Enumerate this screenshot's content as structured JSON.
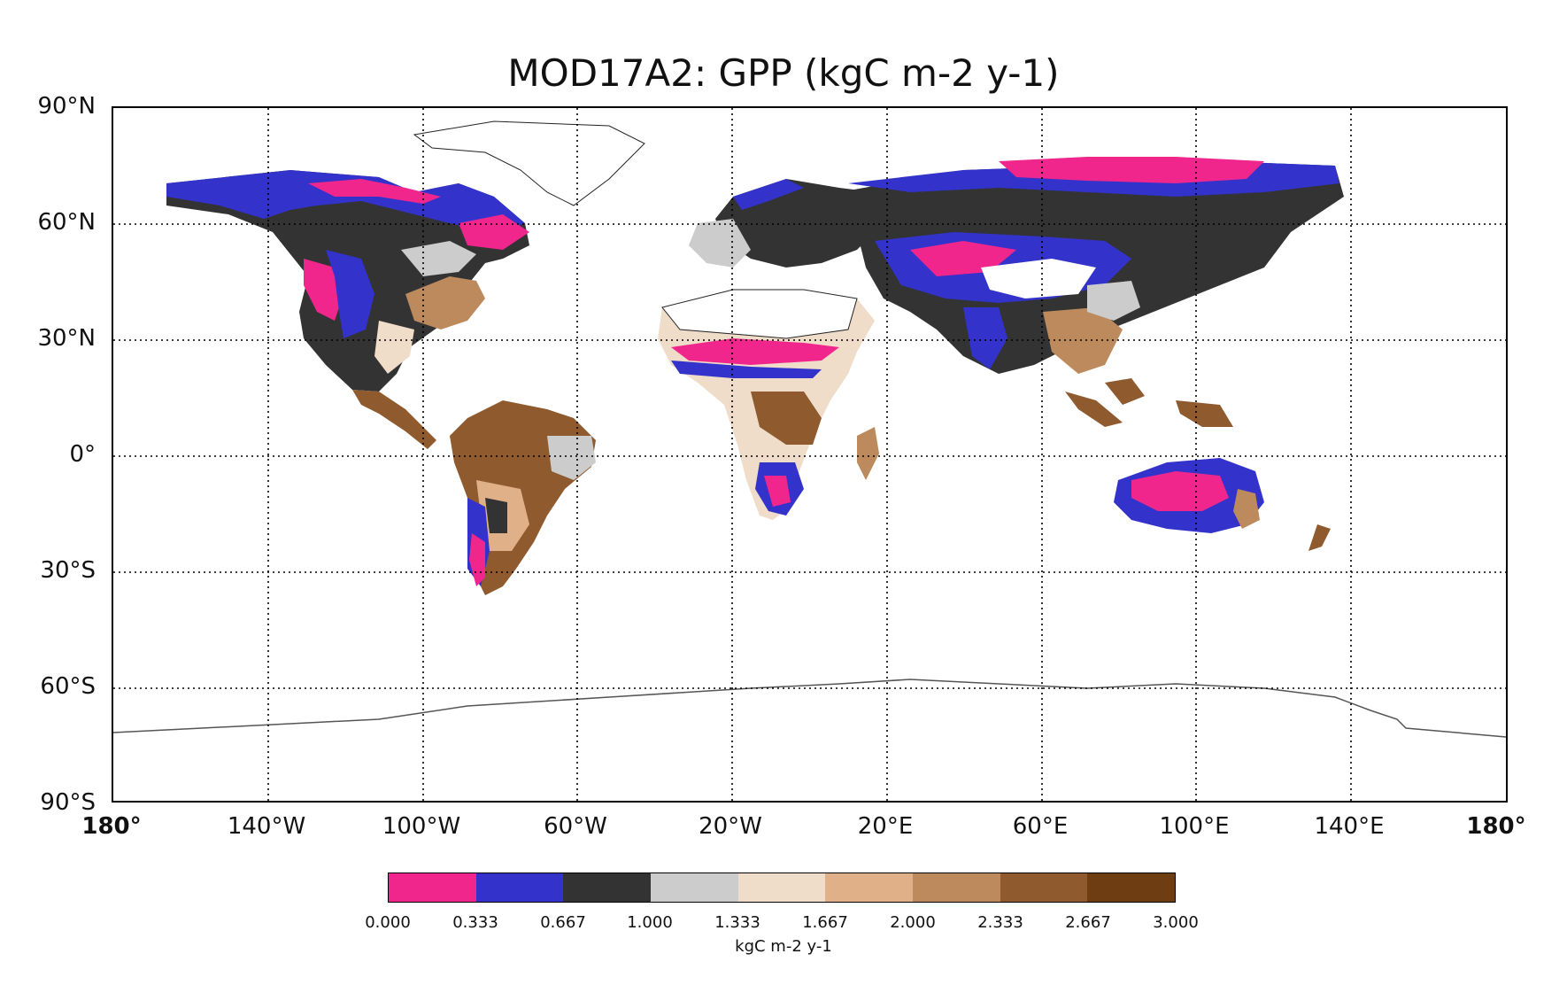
{
  "title": "MOD17A2: GPP (kgC m-2 y-1)",
  "lat_labels": [
    "90°N",
    "60°N",
    "30°N",
    "0°",
    "30°S",
    "60°S",
    "90°S"
  ],
  "lon_labels": [
    "180°",
    "140°W",
    "100°W",
    "60°W",
    "20°W",
    "20°E",
    "60°E",
    "100°E",
    "140°E",
    "180°"
  ],
  "colorbar": {
    "label": "kgC m-2 y-1",
    "ticks": [
      "0.000",
      "0.333",
      "0.667",
      "1.000",
      "1.333",
      "1.667",
      "2.000",
      "2.333",
      "2.667",
      "3.000"
    ],
    "colors": [
      "#f0268c",
      "#3333cc",
      "#333333",
      "#cccccc",
      "#efdcc9",
      "#e0b088",
      "#bc8a5c",
      "#8f5a2e",
      "#6e3d12"
    ]
  },
  "map": {
    "projection": "equirectangular",
    "extent": {
      "lon": [
        -180,
        180
      ],
      "lat": [
        -90,
        90
      ]
    },
    "gridlines": "dotted every 40° lon, 30° lat"
  }
}
